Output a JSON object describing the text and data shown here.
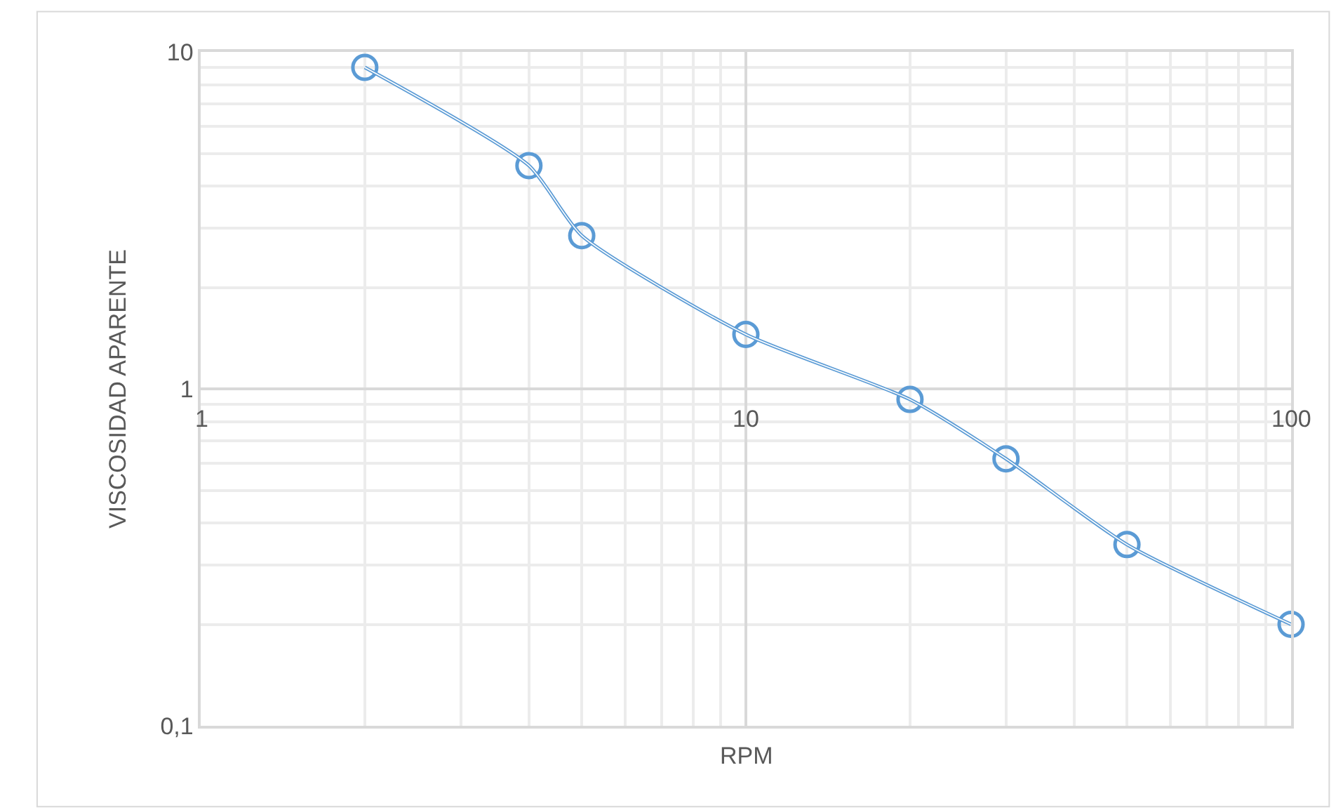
{
  "chart_data": {
    "type": "line",
    "xlabel": "RPM",
    "ylabel": "VISCOSIDAD APARENTE",
    "log": "xy",
    "grid": true,
    "marker": "circle",
    "line_style": "solid",
    "x": [
      2,
      4,
      5,
      10,
      20,
      30,
      50,
      100
    ],
    "series": [
      {
        "color": "#5b9bd5",
        "values": [
          9.0,
          4.6,
          2.85,
          1.45,
          0.93,
          0.62,
          0.345,
          0.2
        ]
      }
    ],
    "xlim": [
      1,
      100
    ],
    "xticks": [
      1,
      10,
      100
    ],
    "ylim": [
      0.1,
      10
    ],
    "yticks": [
      {
        "value": 0.1,
        "label": "0,1"
      },
      1,
      10
    ]
  }
}
